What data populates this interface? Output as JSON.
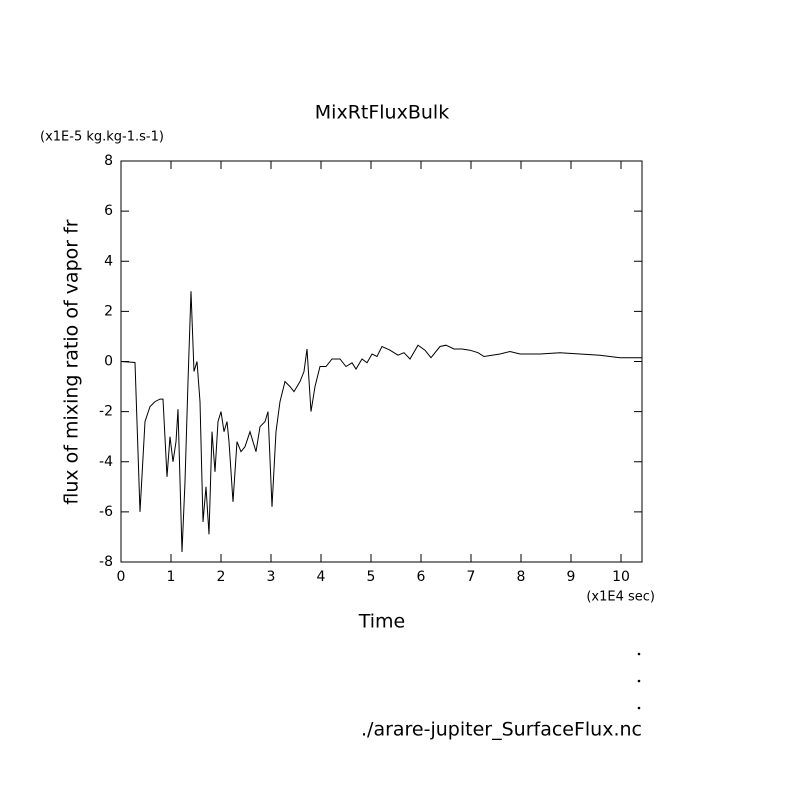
{
  "chart_data": {
    "type": "line",
    "title": "MixRtFluxBulk",
    "y_unit_label": "(x1E-5 kg.kg-1.s-1)",
    "x_unit_label": "(x1E4 sec)",
    "xlabel": "Time",
    "ylabel": "flux of mixing ratio of vapor fr",
    "annotation": "./arare-jupiter_SurfaceFlux.nc",
    "color": "#000000",
    "x": [
      0,
      0.28,
      0.38,
      0.48,
      0.58,
      0.68,
      0.78,
      0.84,
      0.92,
      0.98,
      1.04,
      1.1,
      1.14,
      1.22,
      1.28,
      1.34,
      1.4,
      1.46,
      1.52,
      1.58,
      1.64,
      1.7,
      1.76,
      1.82,
      1.88,
      1.94,
      2,
      2.06,
      2.12,
      2.16,
      2.24,
      2.32,
      2.4,
      2.48,
      2.58,
      2.7,
      2.78,
      2.88,
      2.94,
      3.02,
      3.1,
      3.18,
      3.28,
      3.38,
      3.46,
      3.58,
      3.66,
      3.72,
      3.8,
      3.88,
      3.98,
      4.1,
      4.22,
      4.38,
      4.5,
      4.62,
      4.7,
      4.82,
      4.92,
      5.02,
      5.12,
      5.22,
      5.38,
      5.54,
      5.66,
      5.78,
      5.94,
      6.08,
      6.2,
      6.38,
      6.5,
      6.66,
      6.82,
      6.98,
      7.14,
      7.26,
      7.42,
      7.58,
      7.78,
      7.98,
      8.38,
      8.78,
      9.18,
      9.58,
      9.98,
      10.42
    ],
    "values": [
      0,
      -0.04,
      -6,
      -2.4,
      -1.8,
      -1.6,
      -1.5,
      -1.5,
      -4.6,
      -3,
      -4,
      -3.2,
      -1.9,
      -7.6,
      -4.8,
      -0.8,
      2.8,
      -0.4,
      0,
      -1.6,
      -6.4,
      -5,
      -6.9,
      -2.8,
      -4.4,
      -2.4,
      -2,
      -2.8,
      -2.4,
      -3.2,
      -5.6,
      -3.2,
      -3.6,
      -3.4,
      -2.8,
      -3.6,
      -2.6,
      -2.4,
      -2,
      -5.8,
      -2.8,
      -1.6,
      -0.8,
      -1,
      -1.2,
      -0.8,
      -0.4,
      0.5,
      -2,
      -1,
      -0.2,
      -0.2,
      0.1,
      0.1,
      -0.2,
      -0.05,
      -0.3,
      0.1,
      -0.05,
      0.3,
      0.2,
      0.6,
      0.45,
      0.25,
      0.35,
      0.1,
      0.65,
      0.45,
      0.15,
      0.6,
      0.65,
      0.5,
      0.5,
      0.45,
      0.35,
      0.2,
      0.25,
      0.3,
      0.4,
      0.3,
      0.3,
      0.35,
      0.3,
      0.25,
      0.15,
      0.15
    ],
    "xlim": [
      0,
      10.42
    ],
    "ylim": [
      -8,
      8
    ],
    "xticks": [
      0,
      1,
      2,
      3,
      4,
      5,
      6,
      7,
      8,
      9,
      10
    ],
    "yticks": [
      -8,
      -6,
      -4,
      -2,
      0,
      2,
      4,
      6,
      8
    ]
  }
}
